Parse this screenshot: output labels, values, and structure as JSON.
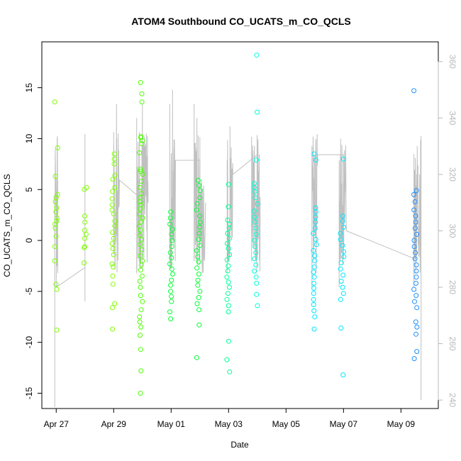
{
  "chart_data": {
    "type": "scatter",
    "title": "ATOM4 Southbound CO_UCATS_m_CO_QCLS",
    "xlabel": "Date",
    "ylabel": "CO_UCATS_m_CO_QCLS",
    "x_ticks": [
      "Apr 27",
      "Apr 29",
      "May 01",
      "May 03",
      "May 05",
      "May 07",
      "May 09"
    ],
    "x_tick_days": [
      0,
      2,
      4,
      6,
      8,
      10,
      12
    ],
    "x_range_days": [
      -0.5,
      13.3
    ],
    "y_ticks": [
      -15,
      -10,
      -5,
      0,
      5,
      10,
      15
    ],
    "ylim": [
      -16.5,
      19.5
    ],
    "y2_ticks": [
      240,
      260,
      280,
      300,
      320,
      340,
      360
    ],
    "y2lim": [
      237,
      367
    ],
    "y2_color": "#b8b8b8",
    "line_color": "#c0c0c0",
    "point_colors": [
      "#7fff00",
      "#4cff00",
      "#00ff33",
      "#00ff99",
      "#00ffdd",
      "#00e5ff",
      "#1e90ff"
    ],
    "series": [
      {
        "color": "#7fff00",
        "x": 0.0,
        "y": [
          13.6,
          9.1,
          6.3,
          4.5,
          4.2,
          3.8,
          3.2,
          2.8,
          2.2,
          1.9,
          1.6,
          1.2,
          0.4,
          -0.6,
          -2.0,
          -4.3,
          -4.8,
          -8.8
        ],
        "line": [
          [
            -0.05,
            -17
          ],
          [
            -0.05,
            310
          ],
          [
            0.05,
            285
          ],
          [
            0.0,
            295
          ],
          [
            0.05,
            302
          ],
          [
            0.0,
            280
          ],
          [
            1.0,
            287
          ],
          [
            1.0,
            275
          ],
          [
            1.0,
            298
          ]
        ]
      },
      {
        "color": "#7fff00",
        "x": 1.0,
        "y": [
          5.2,
          5.0,
          2.4,
          1.8,
          1.0,
          0.6,
          0.2,
          -0.6,
          -0.7,
          -2.2
        ]
      },
      {
        "color": "#7fff00",
        "x": 2.0,
        "y": [
          8.5,
          8.0,
          7.5,
          6.4,
          6.0,
          5.2,
          4.8,
          4.1,
          3.5,
          3.0,
          2.6,
          1.9,
          1.4,
          0.8,
          0.2,
          -0.3,
          -0.8,
          -1.4,
          -2.3,
          -2.6,
          -3.5,
          -4.3,
          -6.2,
          -6.6,
          -8.7
        ],
        "line": [
          [
            2.0,
            300
          ],
          [
            2.0,
            335
          ],
          [
            2.05,
            288
          ],
          [
            2.1,
            345
          ],
          [
            2.15,
            300
          ],
          [
            2.2,
            318
          ],
          [
            3.0,
            311
          ],
          [
            3.0,
            300
          ]
        ]
      },
      {
        "color": "#4cff00",
        "x": 2.95,
        "y": [
          15.5,
          14.4,
          13.6,
          10.2,
          10.1,
          9.8,
          9.5,
          8.6,
          7.0,
          6.8,
          6.5,
          5.8,
          5.2,
          4.6,
          4.2,
          3.8,
          3.5,
          3.1,
          2.6,
          2.2,
          1.8,
          1.4,
          1.0,
          0.5,
          0.1,
          -0.4,
          -0.9,
          -1.5,
          -2.0,
          -2.4,
          -2.9,
          -3.5,
          -4.0,
          -4.6,
          -5.4,
          -6.0,
          -6.8,
          -7.5,
          -8.0,
          -8.5,
          -9.3,
          -10.7,
          -12.8,
          -15.0
        ],
        "line": [
          [
            2.8,
            285
          ],
          [
            2.8,
            340
          ],
          [
            2.85,
            290
          ],
          [
            2.9,
            335
          ],
          [
            2.95,
            295
          ],
          [
            3.0,
            345
          ],
          [
            3.05,
            290
          ],
          [
            3.1,
            330
          ],
          [
            3.15,
            300
          ],
          [
            3.2,
            310
          ]
        ]
      },
      {
        "color": "#00ff33",
        "x": 4.0,
        "y": [
          2.8,
          2.2,
          1.6,
          1.1,
          0.6,
          0.0,
          -0.6,
          -1.2,
          -1.7,
          -2.3,
          -2.8,
          -3.3,
          -3.9,
          -4.4,
          -5.0,
          -5.5,
          -6.0,
          -7.0,
          -7.7
        ],
        "line": [
          [
            3.95,
            290
          ],
          [
            3.95,
            345
          ],
          [
            4.0,
            300
          ],
          [
            4.05,
            350
          ],
          [
            4.1,
            295
          ],
          [
            4.15,
            325
          ],
          [
            5.0,
            325
          ],
          [
            5.0,
            290
          ]
        ]
      },
      {
        "color": "#00ff33",
        "x": 4.95,
        "y": [
          5.9,
          5.4,
          4.9,
          4.2,
          3.6,
          3.0,
          2.4,
          1.8,
          1.3,
          0.7,
          0.1,
          -0.5,
          -1.0,
          -1.6,
          -2.1,
          -2.7,
          -3.3,
          -3.9,
          -4.4,
          -5.0,
          -5.6,
          -6.2,
          -6.8,
          -8.3,
          -11.5
        ],
        "line": [
          [
            4.8,
            290
          ],
          [
            4.8,
            345
          ],
          [
            4.85,
            295
          ],
          [
            4.9,
            340
          ],
          [
            4.95,
            298
          ],
          [
            5.0,
            325
          ],
          [
            5.05,
            300
          ],
          [
            5.1,
            315
          ],
          [
            5.2,
            310
          ]
        ]
      },
      {
        "color": "#00ff99",
        "x": 6.0,
        "y": [
          5.5,
          3.3,
          2.0,
          1.6,
          1.2,
          0.7,
          0.2,
          -0.3,
          -0.8,
          -1.4,
          -1.9,
          -2.5,
          -3.0,
          -3.6,
          -4.1,
          -4.6,
          -5.2,
          -5.8,
          -6.4,
          -7.0,
          -9.9,
          -11.7,
          -12.9
        ],
        "line": [
          [
            5.95,
            285
          ],
          [
            5.95,
            325
          ],
          [
            6.0,
            300
          ],
          [
            6.05,
            337
          ],
          [
            6.1,
            298
          ],
          [
            6.15,
            320
          ],
          [
            7.0,
            327
          ],
          [
            7.0,
            300
          ]
        ]
      },
      {
        "color": "#00ffdd",
        "x": 6.95,
        "y": [
          18.2,
          12.6,
          7.9,
          5.6,
          5.2,
          4.8,
          4.2,
          3.6,
          2.9,
          2.3,
          1.8,
          1.2,
          0.6,
          0.0,
          -0.6,
          -1.2,
          -1.8,
          -2.4,
          -3.0,
          -3.6,
          -4.2,
          -5.3,
          -6.4
        ],
        "line": [
          [
            6.8,
            290
          ],
          [
            6.8,
            330
          ],
          [
            6.85,
            295
          ],
          [
            6.9,
            330
          ],
          [
            6.95,
            300
          ],
          [
            7.0,
            328
          ],
          [
            7.05,
            305
          ],
          [
            7.1,
            312
          ]
        ]
      },
      {
        "color": "#00e5ff",
        "x": 9.0,
        "y": [
          8.5,
          7.9,
          3.2,
          2.8,
          2.3,
          1.8,
          1.2,
          0.7,
          0.1,
          -0.4,
          -1.0,
          -1.5,
          -2.0,
          -2.6,
          -3.1,
          -3.6,
          -4.2,
          -4.7,
          -5.2,
          -5.8,
          -6.3,
          -6.9,
          -7.5,
          -8.7
        ],
        "line": [
          [
            8.9,
            280
          ],
          [
            8.9,
            330
          ],
          [
            8.95,
            290
          ],
          [
            9.0,
            327
          ],
          [
            9.05,
            300
          ],
          [
            9.1,
            327
          ],
          [
            9.5,
            327
          ],
          [
            10.0,
            327
          ],
          [
            10.0,
            290
          ]
        ]
      },
      {
        "color": "#00e5ff",
        "x": 9.95,
        "y": [
          8.0,
          2.4,
          1.9,
          1.3,
          0.7,
          0.1,
          -0.5,
          -1.1,
          -1.6,
          -2.2,
          -2.8,
          -3.4,
          -4.0,
          -4.6,
          -5.2,
          -5.8,
          -8.6,
          -13.2
        ],
        "line": [
          [
            9.85,
            280
          ],
          [
            9.85,
            325
          ],
          [
            9.9,
            290
          ],
          [
            9.95,
            327
          ],
          [
            10.0,
            295
          ],
          [
            10.05,
            318
          ],
          [
            10.1,
            300
          ],
          [
            12.5,
            290
          ]
        ]
      },
      {
        "color": "#1e90ff",
        "x": 12.5,
        "y": [
          14.7,
          4.9,
          4.5,
          3.8,
          3.0,
          2.4,
          1.8,
          1.2,
          0.6,
          0.0,
          -0.6,
          -1.2,
          -1.8,
          -2.4,
          -3.0,
          -3.6,
          -4.2,
          -4.8,
          -5.4,
          -6.0,
          -6.6,
          -8.0,
          -8.5,
          -9.2,
          -10.9,
          -11.6
        ],
        "line": [
          [
            12.45,
            280
          ],
          [
            12.45,
            322
          ],
          [
            12.5,
            290
          ],
          [
            12.55,
            320
          ],
          [
            12.6,
            295
          ],
          [
            12.65,
            320
          ],
          [
            12.7,
            300
          ],
          [
            12.7,
            240
          ]
        ]
      }
    ]
  }
}
